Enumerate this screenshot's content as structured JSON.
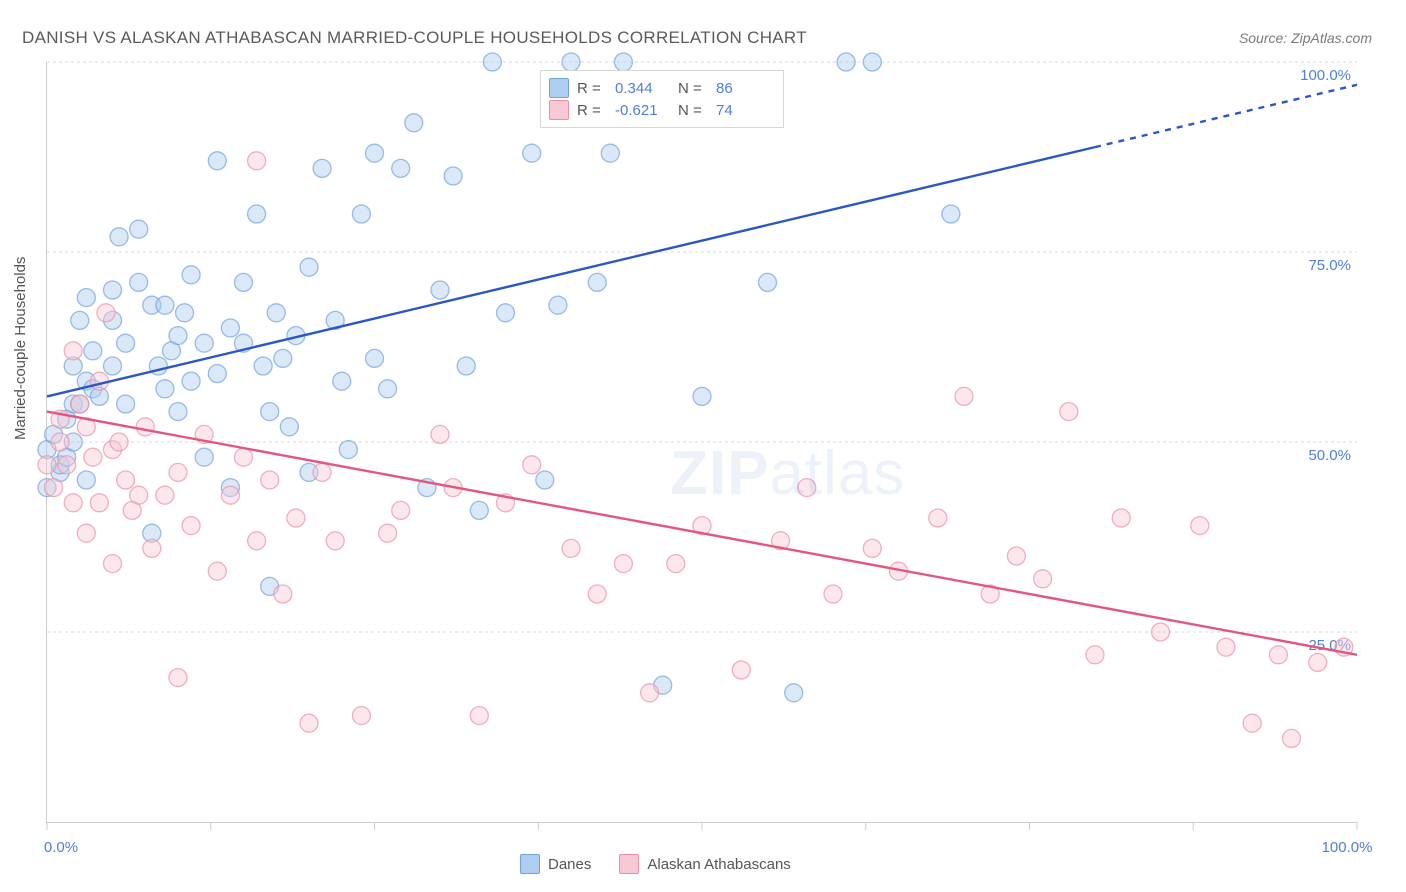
{
  "title": "DANISH VS ALASKAN ATHABASCAN MARRIED-COUPLE HOUSEHOLDS CORRELATION CHART",
  "source": "Source: ZipAtlas.com",
  "watermark_bold": "ZIP",
  "watermark_rest": "atlas",
  "y_axis_label": "Married-couple Households",
  "chart": {
    "type": "scatter",
    "background_color": "#ffffff",
    "grid_color": "#dadada",
    "axis_color": "#cccccc",
    "tick_label_color": "#4f7fd6",
    "xlim": [
      0,
      100
    ],
    "ylim": [
      0,
      100
    ],
    "x_ticks": [
      0,
      12.5,
      25,
      37.5,
      50,
      62.5,
      75,
      87.5,
      100
    ],
    "x_tick_labels": {
      "0": "0.0%",
      "100": "100.0%"
    },
    "y_ticks": [
      25,
      50,
      75,
      100
    ],
    "y_tick_labels": {
      "25": "25.0%",
      "50": "50.0%",
      "75": "75.0%",
      "100": "100.0%"
    },
    "marker_radius": 9,
    "marker_opacity": 0.45,
    "line_width": 2.4,
    "series": [
      {
        "name": "Danes",
        "fill_color": "#aecdf0",
        "stroke_color": "#6fa3dd",
        "line_color": "#2a56c6",
        "R": "0.344",
        "N": "86",
        "regression": {
          "x0": 0,
          "y0": 56,
          "x1": 100,
          "y1": 97,
          "dash_after_x": 80
        },
        "points": [
          [
            0,
            44
          ],
          [
            0,
            49
          ],
          [
            0.5,
            51
          ],
          [
            1,
            46
          ],
          [
            1,
            47
          ],
          [
            1.5,
            53
          ],
          [
            1.5,
            48
          ],
          [
            2,
            60
          ],
          [
            2,
            55
          ],
          [
            2,
            50
          ],
          [
            2.5,
            55
          ],
          [
            2.5,
            66
          ],
          [
            3,
            58
          ],
          [
            3,
            45
          ],
          [
            3,
            69
          ],
          [
            3.5,
            57
          ],
          [
            3.5,
            62
          ],
          [
            4,
            56
          ],
          [
            5,
            70
          ],
          [
            5,
            66
          ],
          [
            5,
            60
          ],
          [
            5.5,
            77
          ],
          [
            6,
            55
          ],
          [
            6,
            63
          ],
          [
            7,
            71
          ],
          [
            7,
            78
          ],
          [
            8,
            68
          ],
          [
            8,
            38
          ],
          [
            8.5,
            60
          ],
          [
            9,
            57
          ],
          [
            9,
            68
          ],
          [
            9.5,
            62
          ],
          [
            10,
            64
          ],
          [
            10,
            54
          ],
          [
            10.5,
            67
          ],
          [
            11,
            58
          ],
          [
            11,
            72
          ],
          [
            12,
            63
          ],
          [
            12,
            48
          ],
          [
            13,
            59
          ],
          [
            13,
            87
          ],
          [
            14,
            65
          ],
          [
            14,
            44
          ],
          [
            15,
            63
          ],
          [
            15,
            71
          ],
          [
            16,
            80
          ],
          [
            16.5,
            60
          ],
          [
            17,
            54
          ],
          [
            17,
            31
          ],
          [
            17.5,
            67
          ],
          [
            18,
            61
          ],
          [
            18.5,
            52
          ],
          [
            19,
            64
          ],
          [
            20,
            73
          ],
          [
            20,
            46
          ],
          [
            21,
            86
          ],
          [
            22,
            66
          ],
          [
            22.5,
            58
          ],
          [
            23,
            49
          ],
          [
            24,
            80
          ],
          [
            25,
            88
          ],
          [
            25,
            61
          ],
          [
            26,
            57
          ],
          [
            27,
            86
          ],
          [
            28,
            92
          ],
          [
            29,
            44
          ],
          [
            30,
            70
          ],
          [
            31,
            85
          ],
          [
            32,
            60
          ],
          [
            33,
            41
          ],
          [
            34,
            100
          ],
          [
            35,
            67
          ],
          [
            37,
            88
          ],
          [
            38,
            45
          ],
          [
            39,
            68
          ],
          [
            40,
            100
          ],
          [
            42,
            71
          ],
          [
            43,
            88
          ],
          [
            44,
            100
          ],
          [
            47,
            18
          ],
          [
            50,
            56
          ],
          [
            55,
            71
          ],
          [
            57,
            17
          ],
          [
            61,
            100
          ],
          [
            63,
            100
          ],
          [
            69,
            80
          ]
        ]
      },
      {
        "name": "Alaskan Athabascans",
        "fill_color": "#f7c9d4",
        "stroke_color": "#ec8fa6",
        "line_color": "#e2567f",
        "R": "-0.621",
        "N": "74",
        "regression": {
          "x0": 0,
          "y0": 54,
          "x1": 100,
          "y1": 22,
          "dash_after_x": 100
        },
        "points": [
          [
            0,
            47
          ],
          [
            0.5,
            44
          ],
          [
            1,
            53
          ],
          [
            1,
            50
          ],
          [
            1.5,
            47
          ],
          [
            2,
            42
          ],
          [
            2,
            62
          ],
          [
            2.5,
            55
          ],
          [
            3,
            38
          ],
          [
            3,
            52
          ],
          [
            3.5,
            48
          ],
          [
            4,
            58
          ],
          [
            4,
            42
          ],
          [
            4.5,
            67
          ],
          [
            5,
            34
          ],
          [
            5,
            49
          ],
          [
            5.5,
            50
          ],
          [
            6,
            45
          ],
          [
            6.5,
            41
          ],
          [
            7,
            43
          ],
          [
            7.5,
            52
          ],
          [
            8,
            36
          ],
          [
            9,
            43
          ],
          [
            10,
            19
          ],
          [
            10,
            46
          ],
          [
            11,
            39
          ],
          [
            12,
            51
          ],
          [
            13,
            33
          ],
          [
            14,
            43
          ],
          [
            15,
            48
          ],
          [
            16,
            87
          ],
          [
            16,
            37
          ],
          [
            17,
            45
          ],
          [
            18,
            30
          ],
          [
            19,
            40
          ],
          [
            20,
            13
          ],
          [
            21,
            46
          ],
          [
            22,
            37
          ],
          [
            24,
            14
          ],
          [
            26,
            38
          ],
          [
            27,
            41
          ],
          [
            30,
            51
          ],
          [
            31,
            44
          ],
          [
            33,
            14
          ],
          [
            35,
            42
          ],
          [
            37,
            47
          ],
          [
            40,
            36
          ],
          [
            42,
            30
          ],
          [
            44,
            34
          ],
          [
            46,
            17
          ],
          [
            48,
            34
          ],
          [
            50,
            39
          ],
          [
            53,
            20
          ],
          [
            56,
            37
          ],
          [
            58,
            44
          ],
          [
            60,
            30
          ],
          [
            63,
            36
          ],
          [
            65,
            33
          ],
          [
            68,
            40
          ],
          [
            70,
            56
          ],
          [
            72,
            30
          ],
          [
            74,
            35
          ],
          [
            76,
            32
          ],
          [
            78,
            54
          ],
          [
            80,
            22
          ],
          [
            82,
            40
          ],
          [
            85,
            25
          ],
          [
            88,
            39
          ],
          [
            90,
            23
          ],
          [
            92,
            13
          ],
          [
            94,
            22
          ],
          [
            95,
            11
          ],
          [
            97,
            21
          ],
          [
            99,
            23
          ]
        ]
      }
    ]
  },
  "legend_top": {
    "r_label": "R =",
    "n_label": "N ="
  },
  "legend_bottom": {
    "items": [
      "Danes",
      "Alaskan Athabascans"
    ]
  }
}
